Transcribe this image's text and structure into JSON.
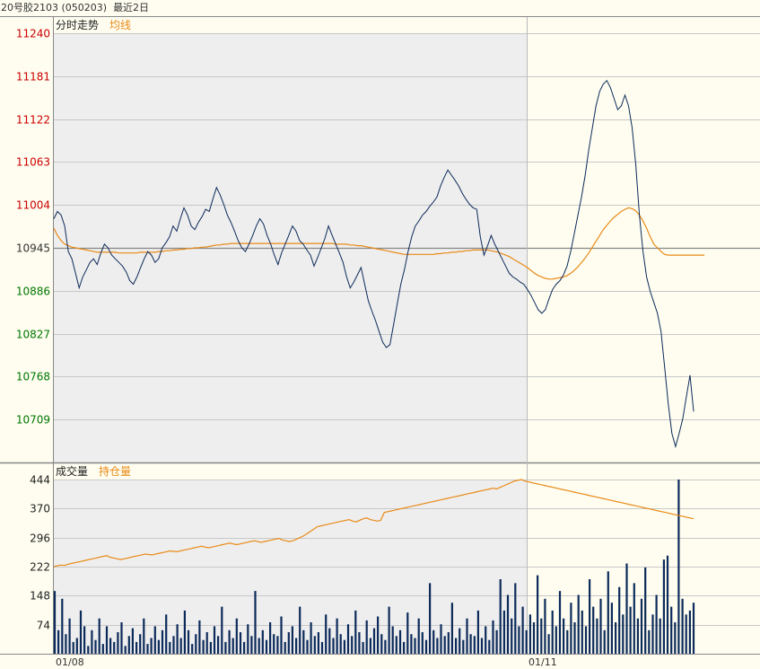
{
  "header": {
    "instrument": "20号胶2103 (050203)",
    "range": "最近2日"
  },
  "price_panel": {
    "title": "分时走势",
    "avg_label": "均线"
  },
  "volume_panel": {
    "title": "成交量",
    "oi_label": "持仓量"
  },
  "colors": {
    "price_line": "#0c2a5a",
    "avg_line": "#e98a16",
    "up_tick": "#cc0000",
    "down_tick": "#007700",
    "base_tick": "#333333",
    "volume_bar": "#0c2a5a",
    "oi_line": "#e98a16"
  },
  "chart_data": [
    {
      "type": "line",
      "title": "分时走势",
      "y_ticks": [
        "11240",
        "11181",
        "11122",
        "11063",
        "11004",
        "10945",
        "10886",
        "10827",
        "10768",
        "10709"
      ],
      "ylim": [
        10650,
        11240
      ],
      "base_value": 10945,
      "days": [
        "01/08",
        "01/11"
      ],
      "series": [
        {
          "name": "",
          "values": [
            10985,
            10995,
            10990,
            10975,
            10940,
            10930,
            10910,
            10890,
            10905,
            10915,
            10925,
            10930,
            10922,
            10938,
            10950,
            10945,
            10935,
            10930,
            10925,
            10920,
            10912,
            10900,
            10895,
            10905,
            10918,
            10930,
            10940,
            10935,
            10925,
            10930,
            10945,
            10952,
            10960,
            10975,
            10968,
            10985,
            11000,
            10990,
            10975,
            10970,
            10980,
            10988,
            10998,
            10995,
            11012,
            11028,
            11018,
            11005,
            10990,
            10980,
            10968,
            10955,
            10945,
            10940,
            10950,
            10962,
            10975,
            10985,
            10978,
            10962,
            10950,
            10935,
            10922,
            10938,
            10950,
            10962,
            10975,
            10968,
            10955,
            10950,
            10942,
            10935,
            10920,
            10932,
            10945,
            10958,
            10975,
            10962,
            10950,
            10938,
            10925,
            10905,
            10890,
            10898,
            10908,
            10918,
            10895,
            10872,
            10858,
            10845,
            10830,
            10815,
            10808,
            10812,
            10840,
            10868,
            10895,
            10915,
            10940,
            10960,
            10975,
            10982,
            10990,
            10995,
            11002,
            11008,
            11015,
            11030,
            11042,
            11052,
            11045,
            11038,
            11030,
            11020,
            11012,
            11005,
            11000,
            10998,
            10960,
            10935,
            10948,
            10962,
            10950,
            10940,
            10930,
            10920,
            10910,
            10905,
            10902,
            10898,
            10895,
            10888,
            10880,
            10870,
            10860,
            10855,
            10860,
            10875,
            10888,
            10895,
            10900,
            10908,
            10920,
            10940,
            10965,
            10990,
            11015,
            11045,
            11080,
            11110,
            11140,
            11160,
            11170,
            11175,
            11165,
            11150,
            11135,
            11140,
            11155,
            11140,
            11110,
            11060,
            10990,
            10940,
            10905,
            10885,
            10870,
            10855,
            10830,
            10780,
            10730,
            10690,
            10672,
            10690,
            10710,
            10740,
            10770,
            10720
          ]
        },
        {
          "name": "均线",
          "values": [
            10972,
            10962,
            10955,
            10950,
            10948,
            10946,
            10945,
            10944,
            10943,
            10942,
            10941,
            10940,
            10939,
            10939,
            10939,
            10939,
            10939,
            10939,
            10938,
            10938,
            10938,
            10938,
            10938,
            10938,
            10939,
            10939,
            10939,
            10939,
            10939,
            10940,
            10940,
            10941,
            10941,
            10942,
            10942,
            10943,
            10943,
            10944,
            10944,
            10945,
            10945,
            10946,
            10946,
            10947,
            10948,
            10949,
            10949,
            10950,
            10950,
            10951,
            10951,
            10951,
            10951,
            10951,
            10951,
            10951,
            10951,
            10951,
            10951,
            10951,
            10951,
            10951,
            10951,
            10951,
            10951,
            10951,
            10951,
            10951,
            10951,
            10951,
            10951,
            10951,
            10951,
            10951,
            10951,
            10951,
            10951,
            10951,
            10950,
            10950,
            10950,
            10950,
            10949,
            10949,
            10948,
            10948,
            10947,
            10946,
            10945,
            10944,
            10943,
            10942,
            10941,
            10940,
            10939,
            10938,
            10937,
            10936,
            10936,
            10936,
            10936,
            10936,
            10936,
            10936,
            10936,
            10936,
            10937,
            10937,
            10938,
            10938,
            10939,
            10939,
            10940,
            10940,
            10941,
            10941,
            10942,
            10942,
            10942,
            10942,
            10942,
            10941,
            10940,
            10939,
            10937,
            10935,
            10933,
            10930,
            10927,
            10924,
            10921,
            10918,
            10914,
            10910,
            10907,
            10905,
            10903,
            10902,
            10902,
            10903,
            10904,
            10905,
            10907,
            10910,
            10914,
            10919,
            10925,
            10931,
            10938,
            10946,
            10954,
            10962,
            10970,
            10976,
            10982,
            10987,
            10991,
            10995,
            10998,
            11000,
            10999,
            10996,
            10990,
            10982,
            10972,
            10960,
            10950,
            10945,
            10940,
            10936,
            10935,
            10935,
            10935,
            10935,
            10935,
            10935,
            10935,
            10935,
            10935,
            10935,
            10935
          ]
        }
      ]
    },
    {
      "type": "bar",
      "title": "成交量",
      "y_ticks": [
        "444",
        "370",
        "296",
        "222",
        "148",
        "74"
      ],
      "ylim": [
        0,
        444
      ],
      "days": [
        "01/08",
        "01/11"
      ],
      "series": [
        {
          "name": "",
          "values": [
            160,
            60,
            140,
            50,
            90,
            30,
            40,
            110,
            70,
            20,
            60,
            35,
            90,
            25,
            70,
            40,
            30,
            55,
            80,
            20,
            45,
            65,
            30,
            50,
            90,
            25,
            40,
            70,
            35,
            60,
            100,
            30,
            45,
            75,
            40,
            110,
            60,
            25,
            50,
            85,
            35,
            55,
            30,
            70,
            45,
            120,
            30,
            60,
            40,
            90,
            55,
            30,
            75,
            45,
            160,
            40,
            60,
            35,
            80,
            50,
            45,
            95,
            30,
            55,
            70,
            40,
            120,
            60,
            35,
            80,
            45,
            55,
            30,
            100,
            65,
            40,
            90,
            50,
            35,
            75,
            45,
            110,
            55,
            30,
            85,
            40,
            65,
            95,
            50,
            35,
            120,
            70,
            45,
            60,
            30,
            105,
            50,
            40,
            90,
            55,
            35,
            180,
            60,
            40,
            75,
            45,
            55,
            130,
            40,
            65,
            35,
            90,
            50,
            45,
            110,
            40,
            70,
            35,
            85,
            60,
            190,
            110,
            150,
            90,
            180,
            70,
            120,
            60,
            100,
            80,
            200,
            90,
            140,
            50,
            110,
            70,
            160,
            90,
            60,
            130,
            80,
            150,
            110,
            70,
            190,
            120,
            90,
            140,
            60,
            210,
            130,
            80,
            170,
            100,
            230,
            120,
            180,
            90,
            140,
            220,
            60,
            100,
            150,
            90,
            240,
            250,
            120,
            80,
            444,
            140,
            100,
            110,
            130
          ]
        },
        {
          "name": "持仓量",
          "values": [
            222,
            224,
            226,
            225,
            228,
            230,
            232,
            234,
            236,
            238,
            240,
            242,
            244,
            246,
            248,
            250,
            246,
            244,
            242,
            240,
            242,
            244,
            246,
            248,
            250,
            252,
            254,
            253,
            252,
            254,
            256,
            258,
            260,
            262,
            261,
            260,
            262,
            264,
            266,
            268,
            270,
            272,
            274,
            272,
            270,
            272,
            274,
            276,
            278,
            280,
            282,
            280,
            278,
            280,
            282,
            284,
            286,
            288,
            286,
            284,
            286,
            288,
            290,
            292,
            294,
            290,
            288,
            286,
            288,
            292,
            296,
            300,
            306,
            312,
            318,
            324,
            326,
            328,
            330,
            332,
            334,
            336,
            338,
            340,
            342,
            338,
            336,
            340,
            344,
            346,
            342,
            340,
            338,
            340,
            360,
            362,
            364,
            366,
            368,
            370,
            372,
            374,
            376,
            378,
            380,
            382,
            384,
            386,
            388,
            390,
            392,
            394,
            396,
            398,
            400,
            402,
            404,
            406,
            408,
            410,
            412,
            414,
            416,
            418,
            420,
            422,
            420,
            424,
            428,
            432,
            436,
            440,
            442,
            444,
            440,
            438,
            436,
            434,
            432,
            430,
            428,
            426,
            424,
            422,
            420,
            418,
            416,
            414,
            412,
            410,
            408,
            406,
            404,
            402,
            400,
            398,
            396,
            394,
            392,
            390,
            388,
            386,
            384,
            382,
            380,
            378,
            376,
            374,
            372,
            370,
            368,
            366,
            364,
            362,
            360,
            358,
            356,
            354,
            352,
            350,
            348,
            346,
            344
          ]
        }
      ]
    }
  ]
}
